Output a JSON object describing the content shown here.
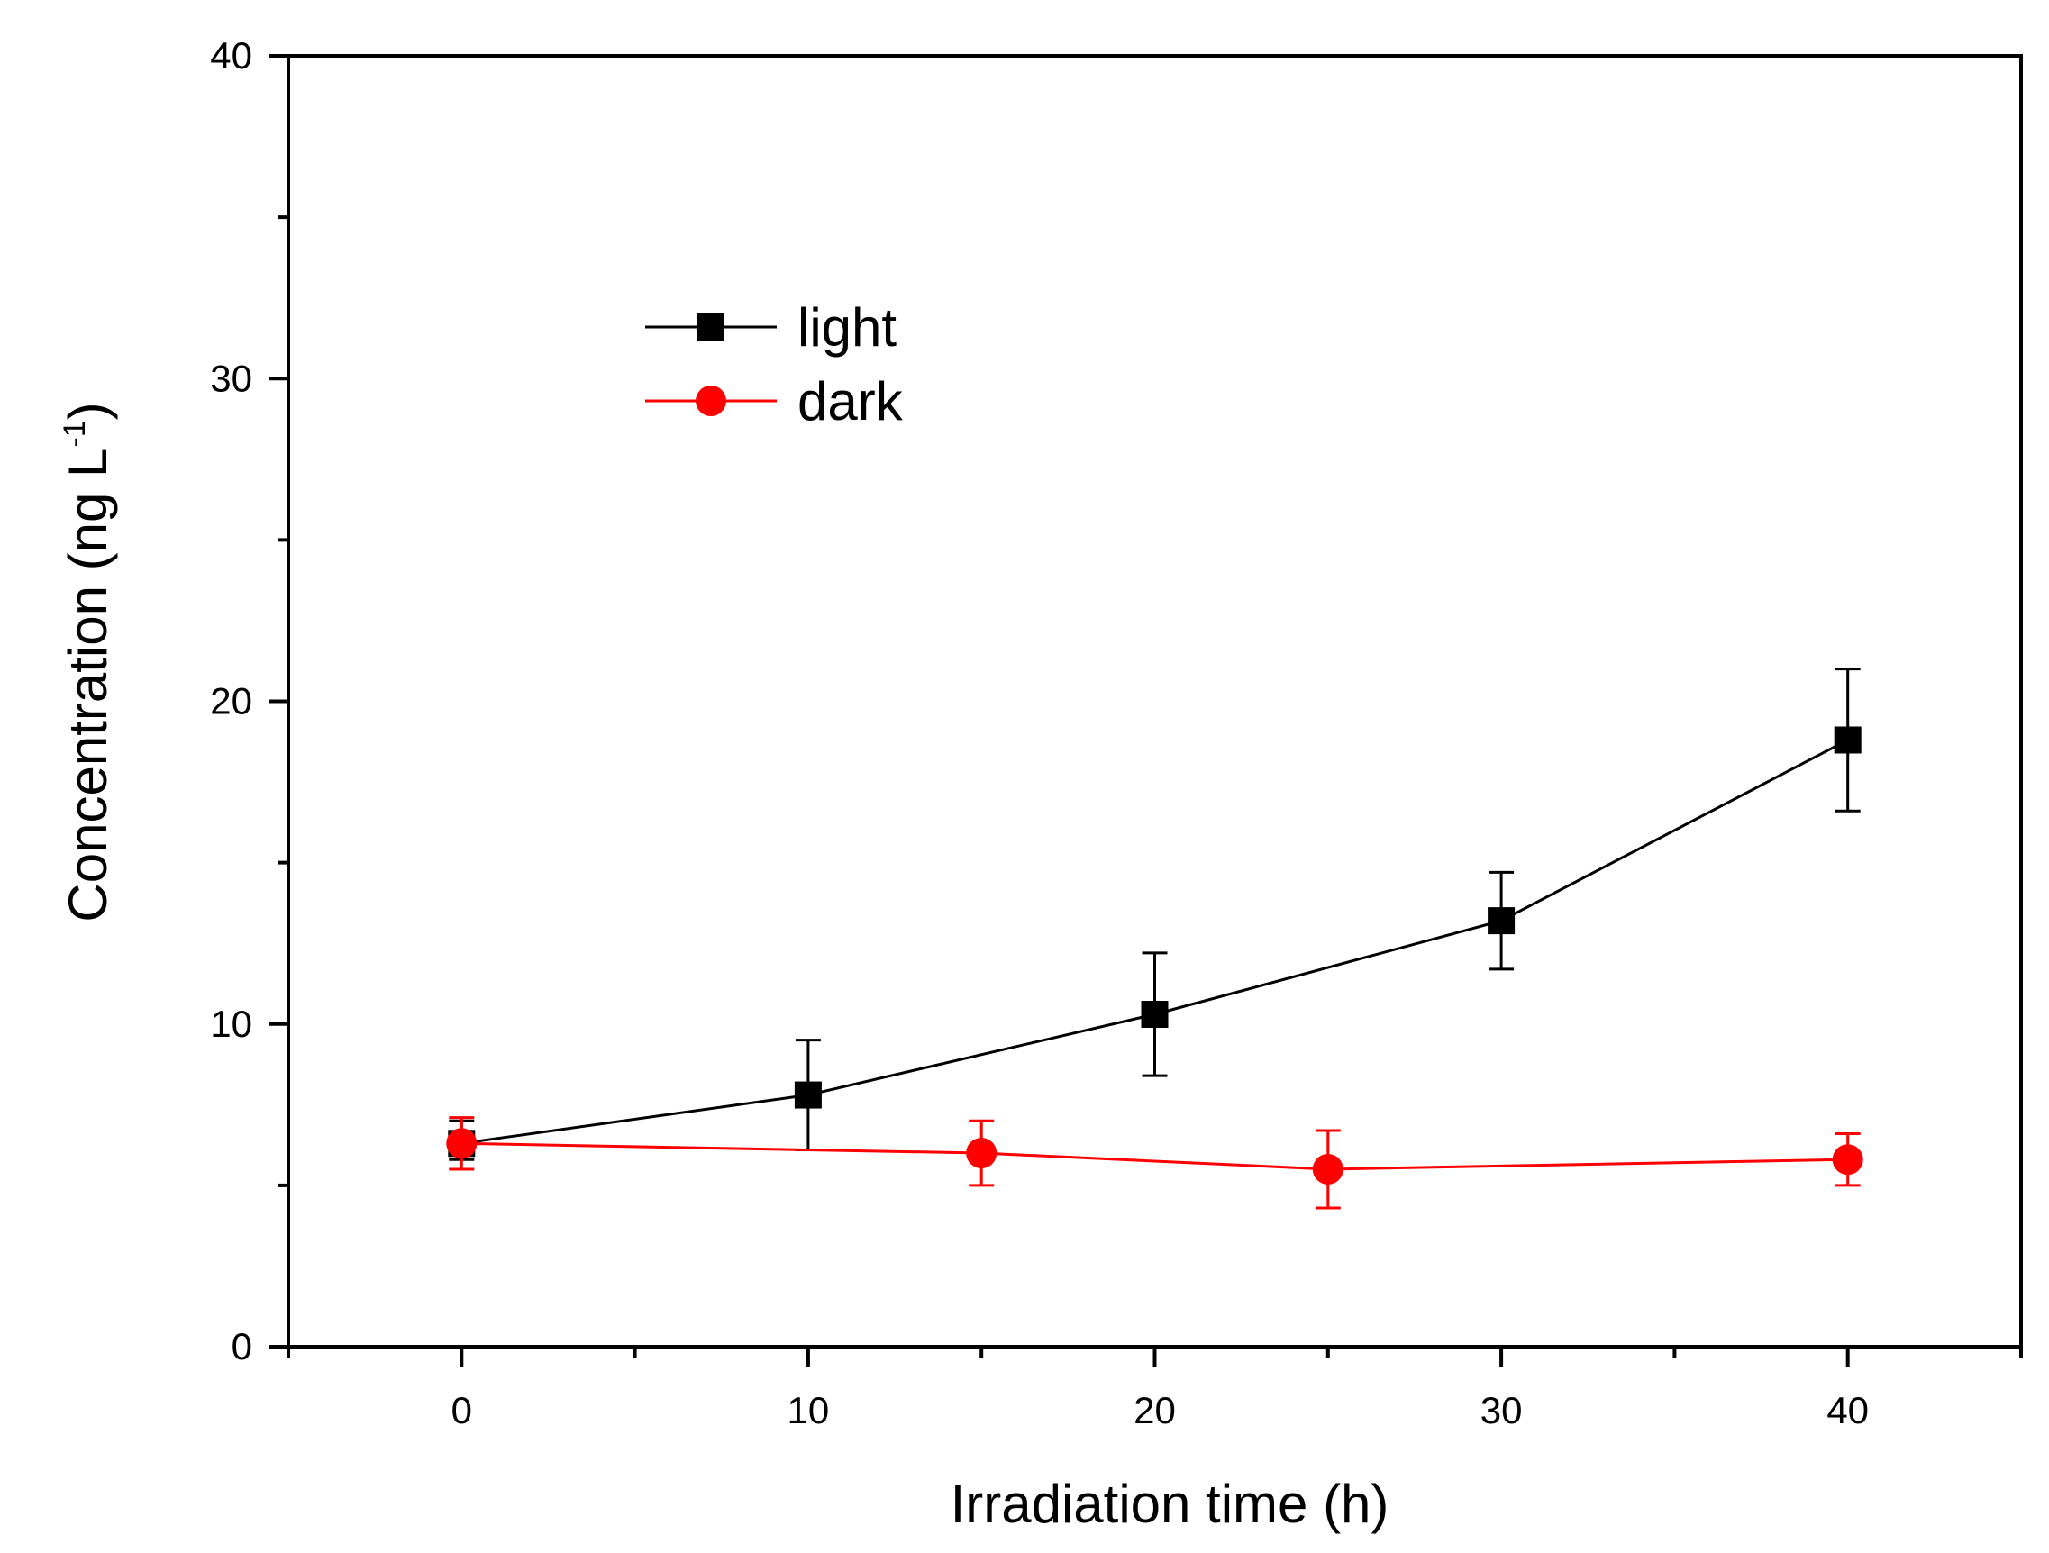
{
  "chart_data": {
    "type": "line",
    "title": "",
    "xlabel": "Irradiation time (h)",
    "ylabel_main": "Concentration (ng L",
    "ylabel_sup": "-1",
    "ylabel_close": ")",
    "xlim": [
      -5,
      45
    ],
    "ylim": [
      0,
      40
    ],
    "x_ticks": [
      0,
      10,
      20,
      30,
      40
    ],
    "x_tick_labels": [
      "0",
      "10",
      "20",
      "30",
      "40"
    ],
    "y_ticks": [
      0,
      10,
      20,
      30,
      40
    ],
    "y_tick_labels": [
      "0",
      "10",
      "20",
      "30",
      "40"
    ],
    "x_minor_ticks": [
      -5,
      5,
      15,
      25,
      35,
      45
    ],
    "y_minor_ticks": [
      5,
      15,
      25,
      35
    ],
    "legend_position": "upper-left",
    "series": [
      {
        "name": "light",
        "marker": "square",
        "color": "#000000",
        "x": [
          0,
          10,
          20,
          30,
          40
        ],
        "y": [
          6.3,
          7.8,
          10.3,
          13.2,
          18.8
        ],
        "err_low": [
          0.5,
          1.7,
          1.9,
          1.5,
          2.2
        ],
        "err_high": [
          0.7,
          1.7,
          1.9,
          1.5,
          2.2
        ]
      },
      {
        "name": "dark",
        "marker": "circle",
        "color": "#ff0000",
        "x": [
          0,
          15,
          25,
          40
        ],
        "y": [
          6.3,
          6.0,
          5.5,
          5.8
        ],
        "err_low": [
          0.8,
          1.0,
          1.2,
          0.8
        ],
        "err_high": [
          0.8,
          1.0,
          1.2,
          0.8
        ]
      }
    ]
  }
}
